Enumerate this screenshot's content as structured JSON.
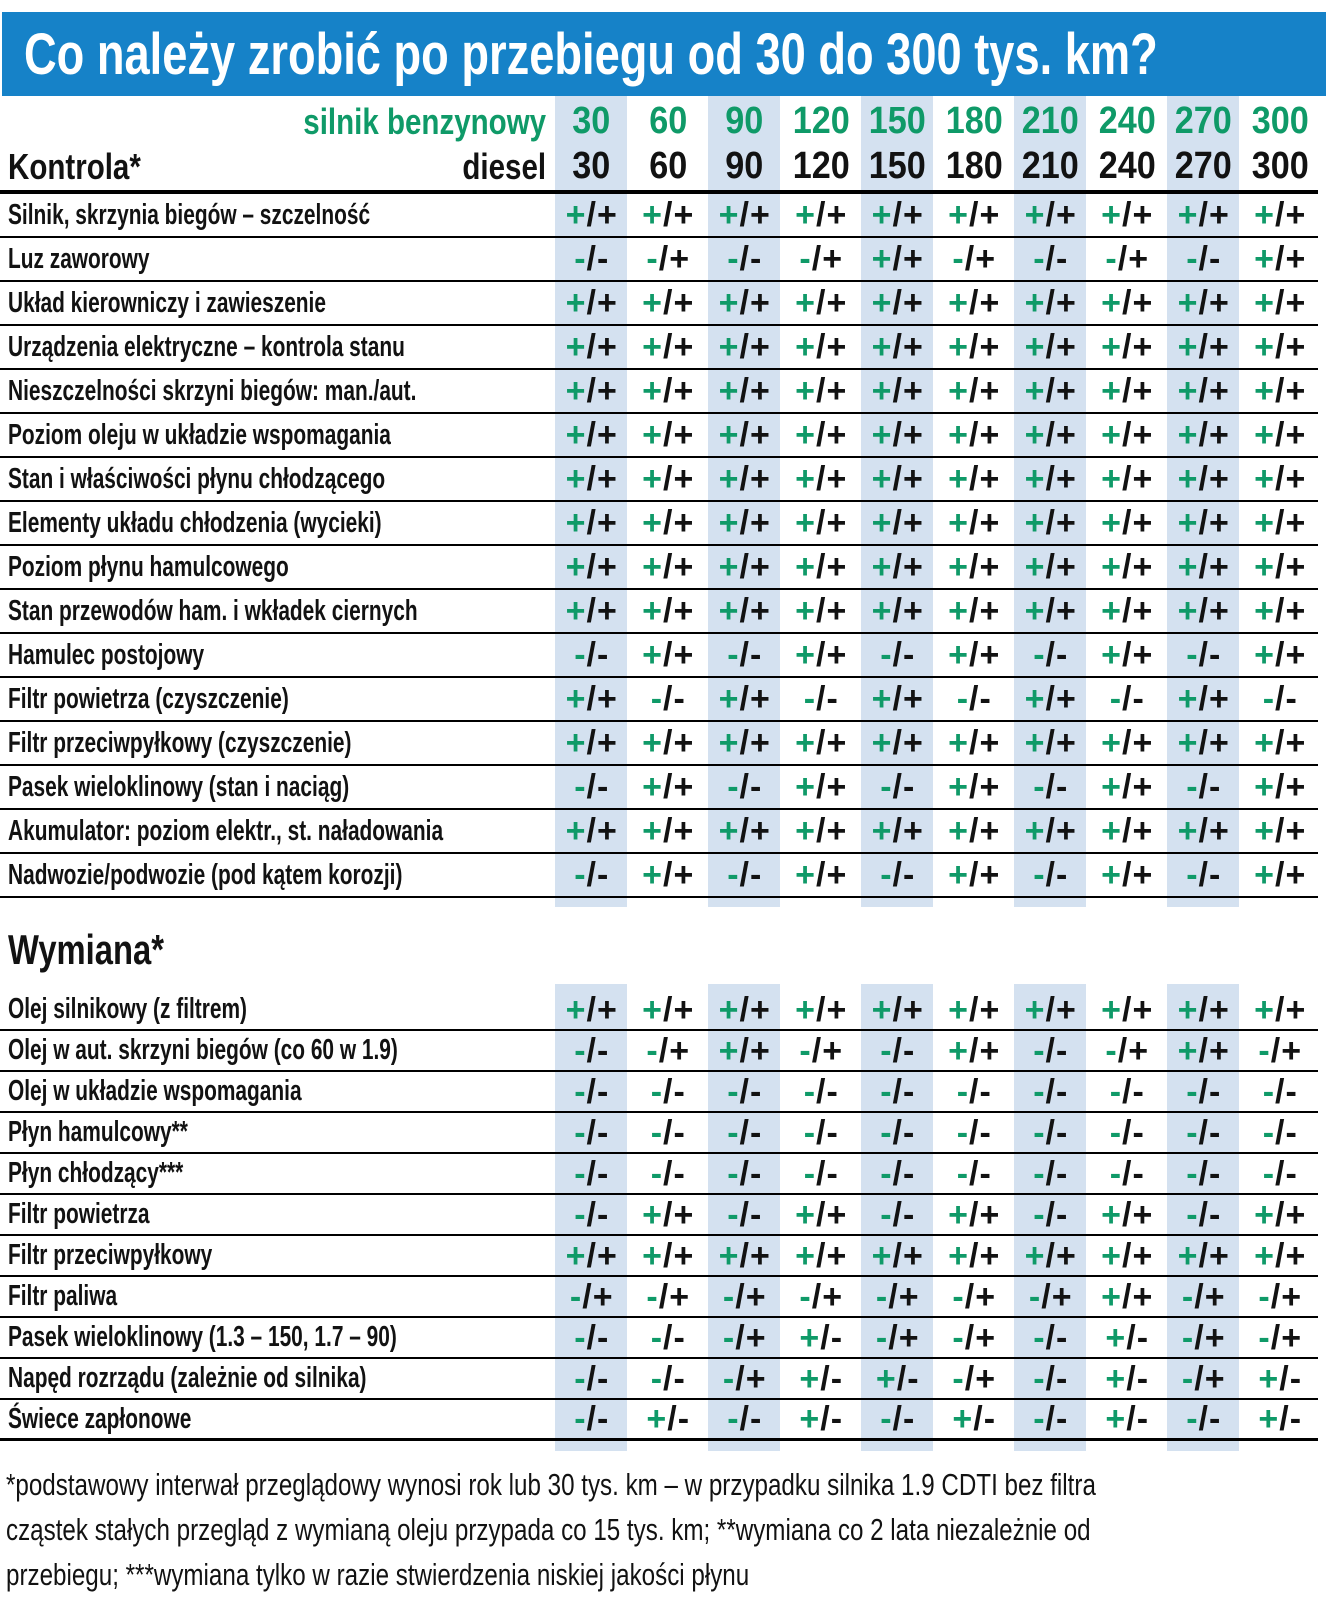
{
  "title": "Co należy zrobić po przebiegu od 30 do 300 tys. km?",
  "header": {
    "benzynowy_label": "silnik benzynowy",
    "diesel_label": "diesel"
  },
  "colors": {
    "title_bar_blue": "#1682c8",
    "green": "#0f9a68",
    "stripe": "#d4e1f0",
    "text": "#121212"
  },
  "chart_data": {
    "type": "table",
    "value_format": "silnik benzynowy / diesel",
    "columns": [
      "30",
      "60",
      "90",
      "120",
      "150",
      "180",
      "210",
      "240",
      "270",
      "300"
    ],
    "sections": [
      {
        "heading": "Kontrola*",
        "rows": [
          {
            "label": "Silnik, skrzynia biegów – szczelność",
            "values": [
              "+/+",
              "+/+",
              "+/+",
              "+/+",
              "+/+",
              "+/+",
              "+/+",
              "+/+",
              "+/+",
              "+/+"
            ]
          },
          {
            "label": "Luz zaworowy",
            "values": [
              "-/-",
              "-/+",
              "-/-",
              "-/+",
              "+/+",
              "-/+",
              "-/-",
              "-/+",
              "-/-",
              "+/+"
            ]
          },
          {
            "label": "Układ kierowniczy i zawieszenie",
            "values": [
              "+/+",
              "+/+",
              "+/+",
              "+/+",
              "+/+",
              "+/+",
              "+/+",
              "+/+",
              "+/+",
              "+/+"
            ]
          },
          {
            "label": "Urządzenia elektryczne – kontrola stanu",
            "values": [
              "+/+",
              "+/+",
              "+/+",
              "+/+",
              "+/+",
              "+/+",
              "+/+",
              "+/+",
              "+/+",
              "+/+"
            ]
          },
          {
            "label": "Nieszczelności skrzyni biegów: man./aut.",
            "values": [
              "+/+",
              "+/+",
              "+/+",
              "+/+",
              "+/+",
              "+/+",
              "+/+",
              "+/+",
              "+/+",
              "+/+"
            ]
          },
          {
            "label": "Poziom oleju w układzie wspomagania",
            "values": [
              "+/+",
              "+/+",
              "+/+",
              "+/+",
              "+/+",
              "+/+",
              "+/+",
              "+/+",
              "+/+",
              "+/+"
            ]
          },
          {
            "label": "Stan i właściwości płynu chłodzącego",
            "values": [
              "+/+",
              "+/+",
              "+/+",
              "+/+",
              "+/+",
              "+/+",
              "+/+",
              "+/+",
              "+/+",
              "+/+"
            ]
          },
          {
            "label": "Elementy układu chłodzenia (wycieki)",
            "values": [
              "+/+",
              "+/+",
              "+/+",
              "+/+",
              "+/+",
              "+/+",
              "+/+",
              "+/+",
              "+/+",
              "+/+"
            ]
          },
          {
            "label": "Poziom płynu hamulcowego",
            "values": [
              "+/+",
              "+/+",
              "+/+",
              "+/+",
              "+/+",
              "+/+",
              "+/+",
              "+/+",
              "+/+",
              "+/+"
            ]
          },
          {
            "label": "Stan przewodów ham. i wkładek ciernych",
            "values": [
              "+/+",
              "+/+",
              "+/+",
              "+/+",
              "+/+",
              "+/+",
              "+/+",
              "+/+",
              "+/+",
              "+/+"
            ]
          },
          {
            "label": "Hamulec postojowy",
            "values": [
              "-/-",
              "+/+",
              "-/-",
              "+/+",
              "-/-",
              "+/+",
              "-/-",
              "+/+",
              "-/-",
              "+/+"
            ]
          },
          {
            "label": "Filtr powietrza (czyszczenie)",
            "values": [
              "+/+",
              "-/-",
              "+/+",
              "-/-",
              "+/+",
              "-/-",
              "+/+",
              "-/-",
              "+/+",
              "-/-"
            ]
          },
          {
            "label": "Filtr przeciwpyłkowy (czyszczenie)",
            "values": [
              "+/+",
              "+/+",
              "+/+",
              "+/+",
              "+/+",
              "+/+",
              "+/+",
              "+/+",
              "+/+",
              "+/+"
            ]
          },
          {
            "label": "Pasek wieloklinowy (stan i naciąg)",
            "values": [
              "-/-",
              "+/+",
              "-/-",
              "+/+",
              "-/-",
              "+/+",
              "-/-",
              "+/+",
              "-/-",
              "+/+"
            ]
          },
          {
            "label": "Akumulator: poziom elektr., st. naładowania",
            "values": [
              "+/+",
              "+/+",
              "+/+",
              "+/+",
              "+/+",
              "+/+",
              "+/+",
              "+/+",
              "+/+",
              "+/+"
            ]
          },
          {
            "label": "Nadwozie/podwozie (pod kątem korozji)",
            "values": [
              "-/-",
              "+/+",
              "-/-",
              "+/+",
              "-/-",
              "+/+",
              "-/-",
              "+/+",
              "-/-",
              "+/+"
            ]
          }
        ]
      },
      {
        "heading": "Wymiana*",
        "rows": [
          {
            "label": "Olej silnikowy (z filtrem)",
            "values": [
              "+/+",
              "+/+",
              "+/+",
              "+/+",
              "+/+",
              "+/+",
              "+/+",
              "+/+",
              "+/+",
              "+/+"
            ]
          },
          {
            "label": "Olej w aut. skrzyni biegów (co 60 w 1.9)",
            "values": [
              "-/-",
              "-/+",
              "+/+",
              "-/+",
              "-/-",
              "+/+",
              "-/-",
              "-/+",
              "+/+",
              "-/+"
            ]
          },
          {
            "label": "Olej w układzie wspomagania",
            "values": [
              "-/-",
              "-/-",
              "-/-",
              "-/-",
              "-/-",
              "-/-",
              "-/-",
              "-/-",
              "-/-",
              "-/-"
            ]
          },
          {
            "label": "Płyn hamulcowy**",
            "values": [
              "-/-",
              "-/-",
              "-/-",
              "-/-",
              "-/-",
              "-/-",
              "-/-",
              "-/-",
              "-/-",
              "-/-"
            ]
          },
          {
            "label": "Płyn chłodzący***",
            "values": [
              "-/-",
              "-/-",
              "-/-",
              "-/-",
              "-/-",
              "-/-",
              "-/-",
              "-/-",
              "-/-",
              "-/-"
            ]
          },
          {
            "label": "Filtr powietrza",
            "values": [
              "-/-",
              "+/+",
              "-/-",
              "+/+",
              "-/-",
              "+/+",
              "-/-",
              "+/+",
              "-/-",
              "+/+"
            ]
          },
          {
            "label": "Filtr przeciwpyłkowy",
            "values": [
              "+/+",
              "+/+",
              "+/+",
              "+/+",
              "+/+",
              "+/+",
              "+/+",
              "+/+",
              "+/+",
              "+/+"
            ]
          },
          {
            "label": "Filtr paliwa",
            "values": [
              "-/+",
              "-/+",
              "-/+",
              "-/+",
              "-/+",
              "-/+",
              "-/+",
              "+/+",
              "-/+",
              "-/+"
            ]
          },
          {
            "label": "Pasek wieloklinowy (1.3 – 150, 1.7 – 90)",
            "values": [
              "-/-",
              "-/-",
              "-/+",
              "+/-",
              "-/+",
              "-/+",
              "-/-",
              "+/-",
              "-/+",
              "-/+"
            ]
          },
          {
            "label": "Napęd rozrządu (zależnie od silnika)",
            "values": [
              "-/-",
              "-/-",
              "-/+",
              "+/-",
              "+/-",
              "-/+",
              "-/-",
              "+/-",
              "-/+",
              "+/-"
            ]
          },
          {
            "label": "Świece zapłonowe",
            "values": [
              "-/-",
              "+/-",
              "-/-",
              "+/-",
              "-/-",
              "+/-",
              "-/-",
              "+/-",
              "-/-",
              "+/-"
            ]
          }
        ]
      }
    ]
  },
  "footnote_lines": [
    "*podstawowy interwał przeglądowy wynosi rok lub 30 tys. km – w przypadku silnika 1.9 CDTI bez filtra",
    "cząstek stałych przegląd z wymianą oleju przypada co 15 tys. km; **wymiana co 2 lata niezależnie od",
    "przebiegu; ***wymiana tylko w razie stwierdzenia niskiej jakości płynu"
  ]
}
